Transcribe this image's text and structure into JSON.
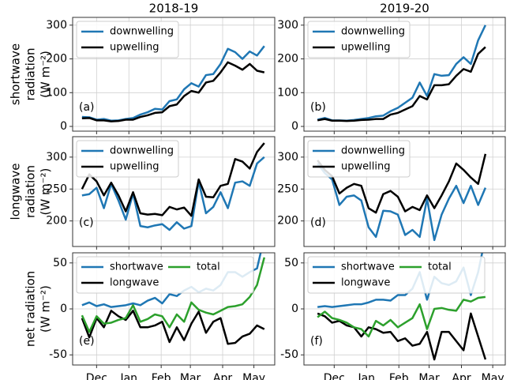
{
  "chart_data": [
    {
      "type": "line",
      "title": "2018-19",
      "ylabel": [
        "shortwave",
        "radiation",
        "(W m⁻²)"
      ],
      "annotation": "(a)",
      "x": [
        16,
        23,
        30,
        37,
        44,
        51,
        58,
        65,
        72,
        79,
        86,
        93,
        100,
        107,
        114,
        121,
        128,
        135,
        142,
        149,
        156,
        163,
        170,
        177,
        184,
        191
      ],
      "xlim": [
        7,
        201
      ],
      "xticks": [
        30,
        61,
        92,
        120,
        151,
        181
      ],
      "ylim": [
        -14,
        323
      ],
      "yticks": [
        0,
        100,
        200,
        300
      ],
      "grid": true,
      "legend": "upper left",
      "legend_ncol": 1,
      "series": [
        {
          "name": "downwelling",
          "color": "#1f77b4",
          "values": [
            28,
            27,
            20,
            22,
            17,
            18,
            22,
            25,
            35,
            42,
            52,
            50,
            75,
            80,
            110,
            128,
            118,
            152,
            155,
            185,
            230,
            220,
            200,
            222,
            210,
            238
          ]
        },
        {
          "name": "upwelling",
          "color": "#000000",
          "values": [
            24,
            25,
            18,
            18,
            15,
            16,
            20,
            20,
            28,
            33,
            40,
            42,
            60,
            65,
            90,
            105,
            100,
            130,
            135,
            160,
            190,
            180,
            168,
            185,
            165,
            160
          ]
        }
      ]
    },
    {
      "type": "line",
      "title": "2019-20",
      "annotation": "(b)",
      "x": [
        14,
        21,
        28,
        35,
        42,
        49,
        56,
        63,
        70,
        77,
        84,
        91,
        98,
        105,
        112,
        119,
        126,
        133,
        140,
        147,
        154,
        161,
        168,
        175
      ],
      "xlim": [
        1,
        194
      ],
      "xticks": [
        30,
        61,
        92,
        121,
        152,
        182
      ],
      "ylim": [
        -14,
        323
      ],
      "yticks": [
        0,
        100,
        200,
        300
      ],
      "grid": true,
      "legend": "upper left",
      "legend_ncol": 1,
      "series": [
        {
          "name": "downwelling",
          "color": "#1f77b4",
          "values": [
            20,
            25,
            18,
            18,
            17,
            19,
            22,
            25,
            30,
            32,
            45,
            55,
            70,
            85,
            130,
            90,
            155,
            150,
            152,
            185,
            205,
            185,
            255,
            300
          ]
        },
        {
          "name": "upwelling",
          "color": "#000000",
          "values": [
            18,
            22,
            17,
            17,
            16,
            17,
            19,
            20,
            22,
            22,
            35,
            40,
            50,
            60,
            90,
            80,
            122,
            122,
            125,
            150,
            170,
            162,
            215,
            235
          ]
        }
      ]
    },
    {
      "type": "line",
      "ylabel": [
        "longwave",
        "radiation",
        "(W m⁻²)"
      ],
      "annotation": "(c)",
      "x": [
        16,
        23,
        30,
        37,
        44,
        51,
        58,
        65,
        72,
        79,
        86,
        93,
        100,
        107,
        114,
        121,
        128,
        135,
        142,
        149,
        156,
        163,
        170,
        177,
        184,
        191
      ],
      "xlim": [
        7,
        201
      ],
      "xticks": [
        30,
        61,
        92,
        120,
        151,
        181
      ],
      "ylim": [
        160,
        332
      ],
      "yticks": [
        200,
        250,
        300
      ],
      "grid": true,
      "legend": "upper left",
      "legend_ncol": 1,
      "series": [
        {
          "name": "downwelling",
          "color": "#1f77b4",
          "values": [
            240,
            242,
            252,
            220,
            258,
            232,
            202,
            243,
            192,
            190,
            193,
            195,
            186,
            198,
            188,
            192,
            262,
            212,
            222,
            245,
            220,
            260,
            262,
            255,
            290,
            300
          ]
        },
        {
          "name": "upwelling",
          "color": "#000000",
          "values": [
            250,
            273,
            262,
            240,
            260,
            240,
            215,
            245,
            212,
            210,
            211,
            209,
            222,
            218,
            221,
            208,
            265,
            238,
            237,
            255,
            258,
            297,
            293,
            282,
            308,
            322
          ]
        }
      ]
    },
    {
      "type": "line",
      "annotation": "(d)",
      "x": [
        14,
        21,
        28,
        35,
        42,
        49,
        56,
        63,
        70,
        77,
        84,
        91,
        98,
        105,
        112,
        119,
        126,
        133,
        140,
        147,
        154,
        161,
        168,
        175
      ],
      "xlim": [
        1,
        194
      ],
      "xticks": [
        30,
        61,
        92,
        121,
        152,
        182
      ],
      "ylim": [
        160,
        332
      ],
      "yticks": [
        200,
        250,
        300
      ],
      "grid": true,
      "legend": "upper left",
      "legend_ncol": 1,
      "series": [
        {
          "name": "downwelling",
          "color": "#1f77b4",
          "values": [
            290,
            275,
            265,
            225,
            238,
            240,
            232,
            190,
            175,
            216,
            215,
            210,
            178,
            186,
            175,
            235,
            170,
            210,
            235,
            255,
            228,
            255,
            225,
            252
          ]
        },
        {
          "name": "upwelling",
          "color": "#000000",
          "values": [
            295,
            280,
            270,
            243,
            252,
            258,
            255,
            220,
            213,
            242,
            247,
            238,
            215,
            222,
            217,
            240,
            220,
            240,
            262,
            290,
            280,
            268,
            258,
            305
          ]
        }
      ]
    },
    {
      "type": "line",
      "ylabel": [
        "net radiation",
        "(W m⁻²)"
      ],
      "annotation": "(e)",
      "x": [
        16,
        23,
        30,
        37,
        44,
        51,
        58,
        65,
        72,
        79,
        86,
        93,
        100,
        107,
        114,
        121,
        128,
        135,
        142,
        149,
        156,
        163,
        170,
        177,
        184,
        191
      ],
      "xlim": [
        7,
        201
      ],
      "xticks": [
        {
          "value": 30,
          "label": "Dec"
        },
        {
          "value": 61,
          "label": "Jan"
        },
        {
          "value": 92,
          "label": "Feb"
        },
        {
          "value": 120,
          "label": "Mar"
        },
        {
          "value": 151,
          "label": "Apr"
        },
        {
          "value": 181,
          "label": "May"
        }
      ],
      "ylim": [
        -61,
        61
      ],
      "yticks": [
        -50,
        0,
        50
      ],
      "grid": true,
      "legend": "upper left",
      "legend_ncol": 2,
      "series": [
        {
          "name": "shortwave",
          "color": "#1f77b4",
          "values": [
            4,
            7,
            3,
            5,
            2,
            3,
            4,
            6,
            4,
            9,
            12,
            6,
            16,
            14,
            20,
            24,
            18,
            22,
            20,
            26,
            40,
            40,
            35,
            40,
            44,
            78
          ]
        },
        {
          "name": "longwave",
          "color": "#000000",
          "values": [
            -10,
            -31,
            -10,
            -20,
            -2,
            -8,
            -12,
            -2,
            -20,
            -20,
            -18,
            -14,
            -36,
            -20,
            -34,
            -16,
            -3,
            -26,
            -14,
            -10,
            -38,
            -37,
            -30,
            -27,
            -18,
            -22
          ]
        },
        {
          "name": "total",
          "color": "#2ca02c",
          "values": [
            -7,
            -25,
            -8,
            -16,
            -15,
            -12,
            -10,
            4,
            -14,
            -11,
            -6,
            -8,
            -20,
            -6,
            -14,
            7,
            -1,
            -4,
            -6,
            -2,
            2,
            3,
            5,
            13,
            26,
            56
          ]
        }
      ]
    },
    {
      "type": "line",
      "annotation": "(f)",
      "x": [
        14,
        21,
        28,
        35,
        42,
        49,
        56,
        63,
        70,
        77,
        84,
        91,
        98,
        105,
        112,
        119,
        126,
        133,
        140,
        147,
        154,
        161,
        168,
        175
      ],
      "xlim": [
        1,
        194
      ],
      "xticks": [
        {
          "value": 30,
          "label": "Dec"
        },
        {
          "value": 61,
          "label": "Jan"
        },
        {
          "value": 92,
          "label": "Feb"
        },
        {
          "value": 121,
          "label": "Mar"
        },
        {
          "value": 152,
          "label": "Apr"
        },
        {
          "value": 182,
          "label": "May"
        }
      ],
      "ylim": [
        -61,
        61
      ],
      "yticks": [
        -50,
        0,
        50
      ],
      "grid": true,
      "legend": "upper left",
      "legend_ncol": 2,
      "series": [
        {
          "name": "shortwave",
          "color": "#1f77b4",
          "values": [
            2,
            3,
            2,
            3,
            4,
            5,
            5,
            7,
            10,
            10,
            9,
            15,
            15,
            22,
            40,
            10,
            35,
            28,
            26,
            30,
            45,
            15,
            40,
            78
          ]
        },
        {
          "name": "longwave",
          "color": "#000000",
          "values": [
            -5,
            -8,
            -15,
            -13,
            -18,
            -20,
            -30,
            -20,
            -22,
            -26,
            -25,
            -35,
            -32,
            -40,
            -38,
            -25,
            -55,
            -25,
            -25,
            -35,
            -45,
            -5,
            -30,
            -55
          ]
        },
        {
          "name": "total",
          "color": "#2ca02c",
          "values": [
            -9,
            -3,
            -10,
            -12,
            -15,
            -20,
            -22,
            -30,
            -13,
            -18,
            -12,
            -20,
            -15,
            -10,
            5,
            -22,
            0,
            1,
            -1,
            -2,
            10,
            8,
            12,
            13
          ]
        }
      ]
    }
  ]
}
